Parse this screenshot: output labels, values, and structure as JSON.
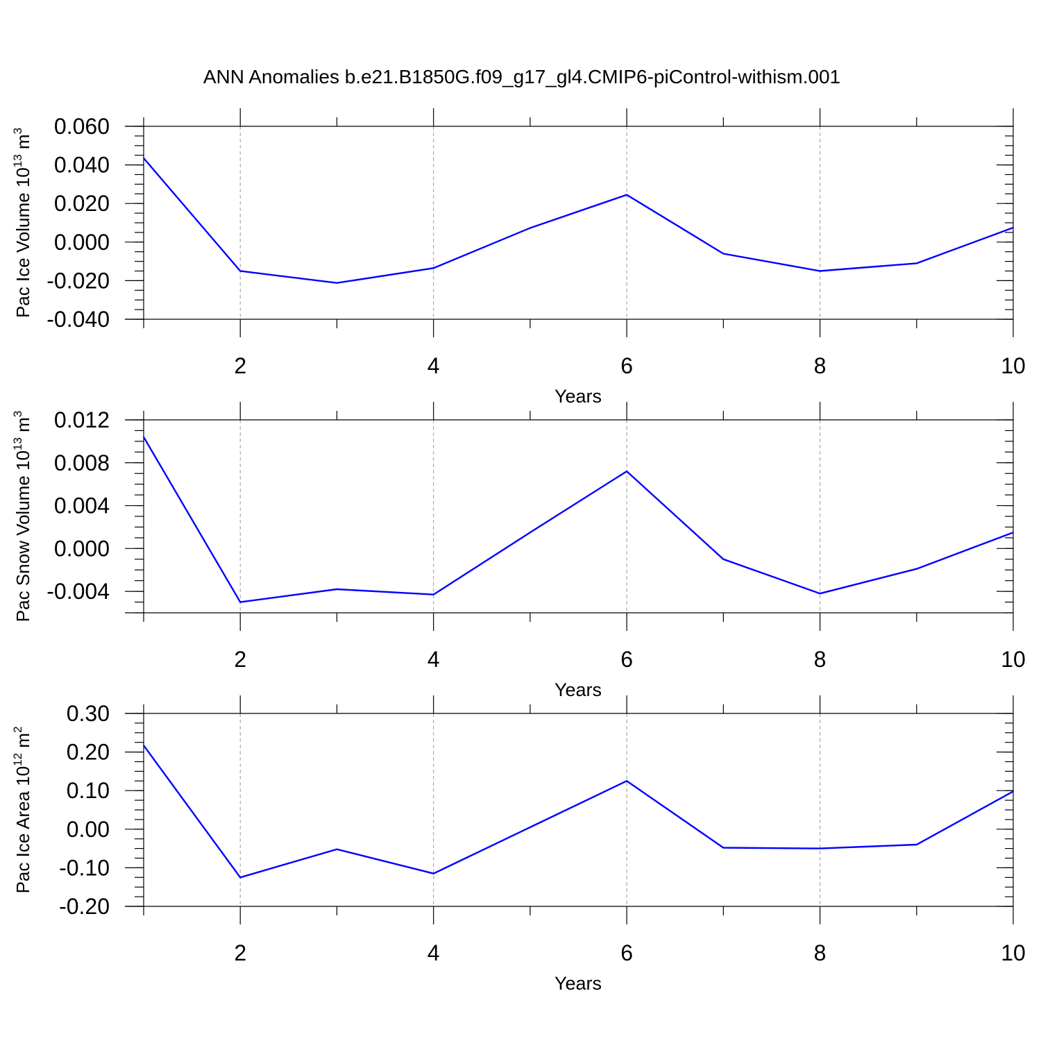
{
  "title": "ANN Anomalies b.e21.B1850G.f09_g17_gl4.CMIP6-piControl-withism.001",
  "colors": {
    "series": "#0000ff",
    "axis": "#000000",
    "grid": "#9a9a9a",
    "background": "#ffffff"
  },
  "chart_data": [
    {
      "type": "line",
      "ylabel": {
        "prefix": "Pac Ice Volume 10",
        "exponent": "13",
        "unit": " m",
        "unit_exponent": "3"
      },
      "xlabel": "Years",
      "x": [
        1,
        2,
        3,
        4,
        5,
        6,
        7,
        8,
        9,
        10
      ],
      "series": [
        {
          "values": [
            0.0435,
            -0.015,
            -0.0212,
            -0.0135,
            0.0073,
            0.0245,
            -0.006,
            -0.015,
            -0.011,
            0.0075
          ]
        }
      ],
      "xlim": [
        1,
        10
      ],
      "ylim": [
        -0.04,
        0.06
      ],
      "yticks": [
        -0.04,
        -0.02,
        0.0,
        0.02,
        0.04,
        0.06
      ],
      "ytick_labels": [
        "-0.040",
        "-0.020",
        "0.000",
        "0.020",
        "0.040",
        "0.060"
      ],
      "xticks": [
        2,
        4,
        6,
        8,
        10
      ],
      "xtick_labels": [
        "2",
        "4",
        "6",
        "8",
        "10"
      ],
      "grid": "x-dashed"
    },
    {
      "type": "line",
      "ylabel": {
        "prefix": "Pac Snow Volume 10",
        "exponent": "13",
        "unit": " m",
        "unit_exponent": "3"
      },
      "xlabel": "Years",
      "x": [
        1,
        2,
        3,
        4,
        5,
        6,
        7,
        8,
        9,
        10
      ],
      "series": [
        {
          "values": [
            0.0104,
            -0.005,
            -0.0038,
            -0.0043,
            0.0015,
            0.0072,
            -0.001,
            -0.0042,
            -0.0019,
            0.0015
          ]
        }
      ],
      "xlim": [
        1,
        10
      ],
      "ylim": [
        -0.006,
        0.012
      ],
      "yticks": [
        -0.004,
        0.0,
        0.004,
        0.008,
        0.012
      ],
      "ytick_labels": [
        "-0.004",
        "0.000",
        "0.004",
        "0.008",
        "0.012"
      ],
      "xticks": [
        2,
        4,
        6,
        8,
        10
      ],
      "xtick_labels": [
        "2",
        "4",
        "6",
        "8",
        "10"
      ],
      "grid": "x-dashed"
    },
    {
      "type": "line",
      "ylabel": {
        "prefix": "Pac Ice Area 10",
        "exponent": "12",
        "unit": " m",
        "unit_exponent": "2"
      },
      "xlabel": "Years",
      "x": [
        1,
        2,
        3,
        4,
        5,
        6,
        7,
        8,
        9,
        10
      ],
      "series": [
        {
          "values": [
            0.217,
            -0.125,
            -0.052,
            -0.115,
            0.005,
            0.125,
            -0.048,
            -0.05,
            -0.04,
            0.098
          ]
        }
      ],
      "xlim": [
        1,
        10
      ],
      "ylim": [
        -0.2,
        0.3
      ],
      "yticks": [
        -0.2,
        -0.1,
        0.0,
        0.1,
        0.2,
        0.3
      ],
      "ytick_labels": [
        "-0.20",
        "-0.10",
        "0.00",
        "0.10",
        "0.20",
        "0.30"
      ],
      "xticks": [
        2,
        4,
        6,
        8,
        10
      ],
      "xtick_labels": [
        "2",
        "4",
        "6",
        "8",
        "10"
      ],
      "grid": "x-dashed"
    }
  ]
}
